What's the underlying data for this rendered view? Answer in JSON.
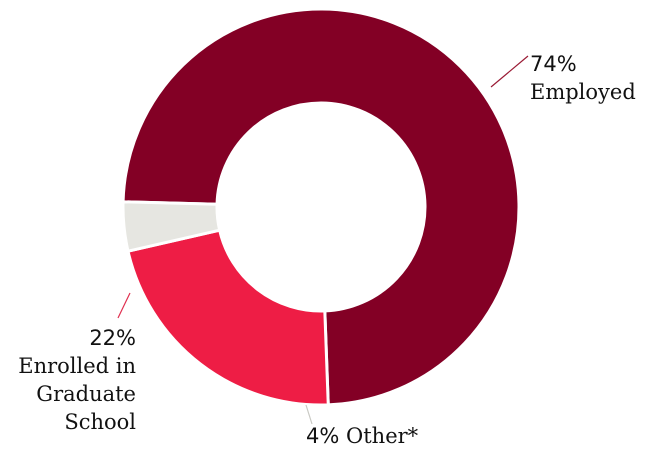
{
  "chart_data": {
    "type": "pie",
    "subtype": "donut",
    "title": "",
    "categories": [
      "Employed",
      "Enrolled in Graduate School",
      "Other*"
    ],
    "values": [
      74,
      22,
      4
    ],
    "unit": "%",
    "colors": [
      "#830025",
      "#ee1d45",
      "#e6e6e1"
    ],
    "legend": "none",
    "labels": {
      "employed": {
        "pct": "74%",
        "name": "Employed"
      },
      "grad": {
        "pct": "22%",
        "name_lines": [
          "Enrolled in",
          "Graduate",
          "School"
        ]
      },
      "other": {
        "pct": "4%",
        "name": "Other*"
      }
    }
  }
}
